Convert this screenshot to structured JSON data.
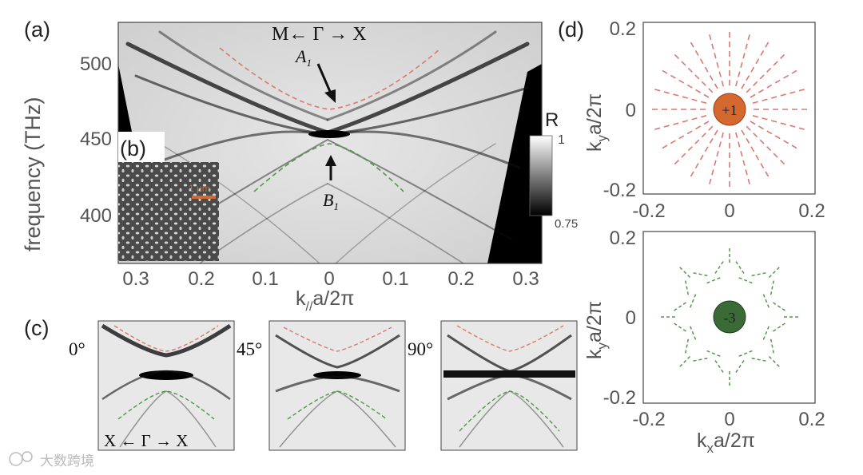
{
  "panels": {
    "a": {
      "label": "(a)",
      "direction": "M← Γ → X",
      "ylabel": "frequency (THz)",
      "xlabel_main": "k",
      "xlabel_sub": "//",
      "xlabel_rest": "a/2π",
      "xticks": [
        "0.3",
        "0.2",
        "0.1",
        "0",
        "0.1",
        "0.2",
        "0.3"
      ],
      "yticks": [
        "500",
        "450",
        "400"
      ],
      "mode_A": "A",
      "mode_A_sub": "1",
      "mode_B": "B",
      "mode_B_sub": "1",
      "colorbar": {
        "label": "R",
        "max": "1",
        "min": "0.75"
      }
    },
    "b": {
      "label": "(b)",
      "scalebar_text": "1 μm"
    },
    "c": {
      "label": "(c)",
      "angles": [
        "0°",
        "45°",
        "90°"
      ],
      "direction": "X ← Γ → X"
    },
    "d": {
      "label": "(d)",
      "top": {
        "charge": "+1",
        "yticks": [
          "0.2",
          "0",
          "-0.2"
        ],
        "xticks": [
          "-0.2",
          "0",
          "0.2"
        ],
        "ylabel_main": "k",
        "ylabel_sub": "y",
        "ylabel_rest": "a/2π"
      },
      "bottom": {
        "charge": "-3",
        "yticks": [
          "0.2",
          "0",
          "-0.2"
        ],
        "xticks": [
          "-0.2",
          "0",
          "0.2"
        ],
        "ylabel_main": "k",
        "ylabel_sub": "y",
        "ylabel_rest": "a/2π",
        "xlabel_main": "k",
        "xlabel_sub": "x",
        "xlabel_rest": "a/2π"
      }
    }
  },
  "watermark": "大数跨境",
  "colors": {
    "upper_band": "#d97a70",
    "lower_band": "#4f9a45",
    "plus_charge": "#d4682f",
    "minus_charge": "#3a6a35"
  }
}
